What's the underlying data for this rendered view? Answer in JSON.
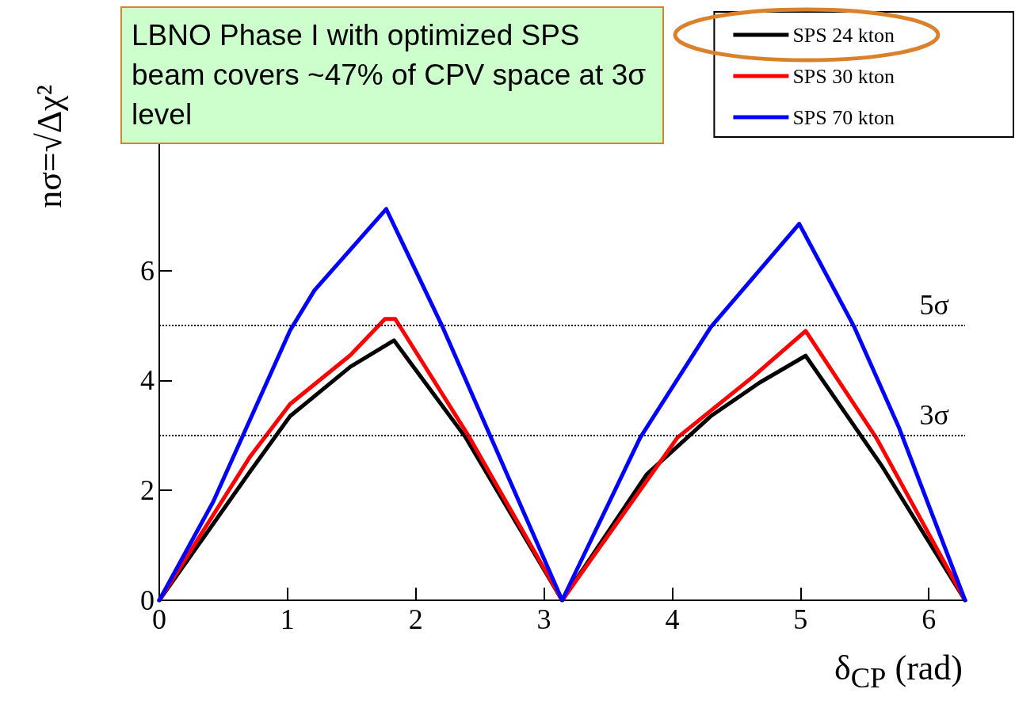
{
  "chart_data": {
    "type": "line",
    "xlabel": "δ$_{CP}$ (rad)",
    "ylabel": "nσ=√Δχ²",
    "xlim": [
      0,
      6.2832
    ],
    "xticks": [
      0,
      1,
      2,
      3,
      4,
      5,
      6
    ],
    "ylim": [
      0,
      9.8
    ],
    "yticks": [
      0,
      2,
      4,
      6
    ],
    "legend": "top right",
    "grid": false,
    "marker": "none",
    "line_style": "solid",
    "annotations": [
      "LBNO Phase I with optimized SPS beam covers ~47% of CPV space at 3σ level"
    ],
    "ref_lines": [
      {
        "axis": "y",
        "value": 5,
        "label": "5σ",
        "line_style": "dotted",
        "color": "#000000"
      },
      {
        "axis": "y",
        "value": 3,
        "label": "3σ",
        "line_style": "dotted",
        "color": "#000000"
      }
    ],
    "series": [
      {
        "name": "SPS 24 kton",
        "color": "#000000",
        "x": [
          0,
          0.71,
          1.02,
          1.49,
          1.83,
          2.39,
          3.1416,
          3.8,
          4.3,
          4.68,
          5.04,
          5.63,
          6.2832
        ],
        "values": [
          0,
          2.35,
          3.35,
          4.25,
          4.73,
          2.96,
          0,
          2.29,
          3.35,
          3.96,
          4.45,
          2.46,
          0
        ]
      },
      {
        "name": "SPS 30 kton",
        "color": "#ff0000",
        "x": [
          0,
          0.71,
          1.02,
          1.49,
          1.76,
          1.84,
          2.42,
          3.1416,
          4.04,
          4.63,
          5.04,
          5.59,
          6.2832
        ],
        "values": [
          0,
          2.62,
          3.57,
          4.46,
          5.12,
          5.12,
          2.96,
          0,
          2.96,
          4.07,
          4.9,
          2.96,
          0
        ]
      },
      {
        "name": "SPS 70 kton",
        "color": "#0000ff",
        "x": [
          0,
          0.42,
          1.02,
          1.21,
          1.77,
          2.21,
          3.1416,
          3.75,
          4.3,
          4.99,
          5.42,
          5.77,
          6.2832
        ],
        "values": [
          0,
          1.79,
          4.91,
          5.64,
          7.12,
          4.97,
          0,
          2.96,
          4.97,
          6.85,
          4.97,
          3.13,
          0
        ]
      }
    ]
  }
}
